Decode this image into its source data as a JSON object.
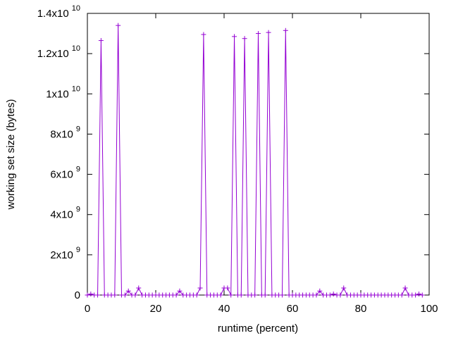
{
  "chart_data": {
    "type": "line",
    "xlabel": "runtime (percent)",
    "ylabel": "working set size (bytes)",
    "xlim": [
      0,
      100
    ],
    "ylim": [
      0,
      14000000000
    ],
    "grid": false,
    "legend": "none",
    "x_ticks": [
      {
        "value": 0,
        "label": "0"
      },
      {
        "value": 20,
        "label": "20"
      },
      {
        "value": 40,
        "label": "40"
      },
      {
        "value": 60,
        "label": "60"
      },
      {
        "value": 80,
        "label": "80"
      },
      {
        "value": 100,
        "label": "100"
      }
    ],
    "y_ticks": [
      {
        "value": 0,
        "mantissa": "0",
        "exp": ""
      },
      {
        "value": 2000000000,
        "mantissa": "2x10",
        "exp": "9"
      },
      {
        "value": 4000000000,
        "mantissa": "4x10",
        "exp": "9"
      },
      {
        "value": 6000000000,
        "mantissa": "6x10",
        "exp": "9"
      },
      {
        "value": 8000000000,
        "mantissa": "8x10",
        "exp": "9"
      },
      {
        "value": 10000000000,
        "mantissa": "1x10",
        "exp": "10"
      },
      {
        "value": 12000000000,
        "mantissa": "1.2x10",
        "exp": "10"
      },
      {
        "value": 14000000000,
        "mantissa": "1.4x10",
        "exp": "10"
      }
    ],
    "series": [
      {
        "color": "#9400d3",
        "marker": "plus",
        "x": [
          0,
          1,
          2,
          3,
          4,
          5,
          6,
          7,
          8,
          9,
          10,
          11,
          12,
          13,
          14,
          15,
          16,
          17,
          18,
          19,
          20,
          21,
          22,
          23,
          24,
          25,
          26,
          27,
          28,
          29,
          30,
          31,
          32,
          33,
          34,
          35,
          36,
          37,
          38,
          39,
          40,
          41,
          42,
          43,
          44,
          45,
          46,
          47,
          48,
          49,
          50,
          51,
          52,
          53,
          54,
          55,
          56,
          57,
          58,
          59,
          60,
          61,
          62,
          63,
          64,
          65,
          66,
          67,
          68,
          69,
          70,
          71,
          72,
          73,
          74,
          75,
          76,
          77,
          78,
          79,
          80,
          81,
          82,
          83,
          84,
          85,
          86,
          87,
          88,
          89,
          90,
          91,
          92,
          93,
          94,
          95,
          96,
          97,
          98
        ],
        "y": [
          0,
          50000000,
          0,
          0,
          12650000000,
          0,
          0,
          0,
          0,
          13400000000,
          0,
          0,
          200000000,
          0,
          0,
          350000000,
          0,
          0,
          0,
          0,
          0,
          0,
          0,
          0,
          0,
          0,
          0,
          200000000,
          0,
          0,
          0,
          0,
          0,
          350000000,
          12950000000,
          0,
          0,
          0,
          0,
          0,
          350000000,
          350000000,
          0,
          12850000000,
          0,
          0,
          12750000000,
          0,
          0,
          0,
          13000000000,
          0,
          0,
          13050000000,
          0,
          0,
          0,
          0,
          13150000000,
          0,
          0,
          0,
          0,
          0,
          0,
          0,
          0,
          0,
          200000000,
          0,
          0,
          0,
          50000000,
          0,
          0,
          350000000,
          0,
          0,
          0,
          0,
          0,
          0,
          0,
          0,
          0,
          0,
          0,
          0,
          0,
          0,
          0,
          0,
          0,
          350000000,
          0,
          0,
          0,
          50000000,
          0
        ]
      }
    ]
  }
}
